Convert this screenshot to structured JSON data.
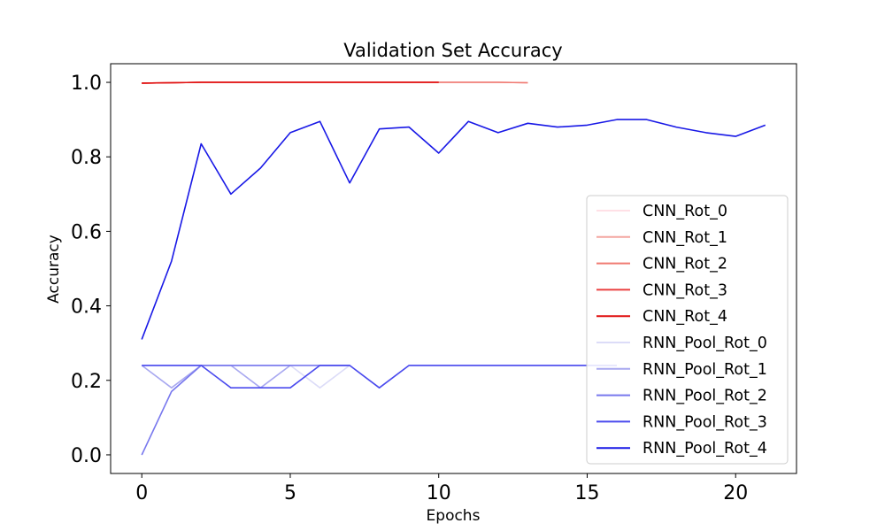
{
  "chart_data": {
    "type": "line",
    "title": "Validation Set Accuracy",
    "xlabel": "Epochs",
    "ylabel": "Accuracy",
    "xlim": [
      -1.05,
      22.05
    ],
    "ylim": [
      -0.05,
      1.05
    ],
    "xticks": [
      0,
      5,
      10,
      15,
      20
    ],
    "yticks": [
      0.0,
      0.2,
      0.4,
      0.6,
      0.8,
      1.0
    ],
    "xtick_labels": [
      "0",
      "5",
      "10",
      "15",
      "20"
    ],
    "ytick_labels": [
      "0.0",
      "0.2",
      "0.4",
      "0.6",
      "0.8",
      "1.0"
    ],
    "grid": false,
    "legend_position": "lower-right",
    "series": [
      {
        "name": "CNN_Rot_0",
        "color": "#ffe0e6",
        "x": [
          0,
          1,
          2,
          3,
          4,
          5,
          6,
          7,
          8,
          9,
          10,
          11,
          12,
          13
        ],
        "values": [
          0.998,
          0.999,
          1.0,
          1.0,
          1.0,
          1.0,
          1.0,
          1.0,
          1.0,
          1.0,
          1.0,
          1.0,
          1.0,
          0.999
        ]
      },
      {
        "name": "CNN_Rot_1",
        "color": "#f4a6a0",
        "x": [
          0,
          1,
          2,
          3,
          4,
          5,
          6,
          7,
          8,
          9,
          10,
          11,
          12,
          13
        ],
        "values": [
          0.998,
          0.999,
          1.0,
          1.0,
          1.0,
          1.0,
          1.0,
          1.0,
          1.0,
          1.0,
          1.0,
          1.0,
          1.0,
          0.999
        ]
      },
      {
        "name": "CNN_Rot_2",
        "color": "#f07a72",
        "x": [
          0,
          1,
          2,
          3,
          4,
          5,
          6,
          7,
          8,
          9,
          10,
          11,
          12,
          13
        ],
        "values": [
          0.998,
          0.999,
          1.0,
          1.0,
          1.0,
          1.0,
          1.0,
          1.0,
          1.0,
          1.0,
          1.0,
          1.0,
          1.0,
          0.999
        ]
      },
      {
        "name": "CNN_Rot_3",
        "color": "#ea4040",
        "x": [
          0,
          1,
          2,
          3,
          4,
          5,
          6,
          7,
          8,
          9,
          10
        ],
        "values": [
          0.998,
          0.999,
          1.0,
          1.0,
          1.0,
          1.0,
          1.0,
          1.0,
          1.0,
          1.0,
          1.0
        ]
      },
      {
        "name": "CNN_Rot_4",
        "color": "#e01010",
        "x": [
          0,
          1,
          2,
          3,
          4,
          5,
          6,
          7,
          8,
          9,
          10
        ],
        "values": [
          0.998,
          0.999,
          1.0,
          1.0,
          1.0,
          1.0,
          1.0,
          1.0,
          1.0,
          1.0,
          1.0
        ]
      },
      {
        "name": "RNN_Pool_Rot_0",
        "color": "#dcdcf8",
        "x": [
          0,
          1,
          2,
          3,
          4,
          5,
          6,
          7,
          8,
          9,
          10,
          11,
          12,
          13,
          14,
          15,
          16
        ],
        "values": [
          0.24,
          0.24,
          0.24,
          0.24,
          0.24,
          0.24,
          0.18,
          0.24,
          0.18,
          0.24,
          0.24,
          0.24,
          0.24,
          0.24,
          0.24,
          0.24,
          0.24
        ]
      },
      {
        "name": "RNN_Pool_Rot_1",
        "color": "#a8a8f0",
        "x": [
          0,
          1,
          2,
          3,
          4,
          5
        ],
        "values": [
          0.24,
          0.18,
          0.24,
          0.24,
          0.18,
          0.24
        ]
      },
      {
        "name": "RNN_Pool_Rot_2",
        "color": "#7878ee",
        "x": [
          0,
          1,
          2,
          3,
          4,
          5,
          6,
          7
        ],
        "values": [
          0.0,
          0.17,
          0.24,
          0.24,
          0.24,
          0.24,
          0.24,
          0.24
        ]
      },
      {
        "name": "RNN_Pool_Rot_3",
        "color": "#4a4aee",
        "x": [
          0,
          1,
          2,
          3,
          4,
          5,
          6,
          7,
          8,
          9,
          10,
          11,
          12,
          13,
          14,
          15,
          16
        ],
        "values": [
          0.24,
          0.24,
          0.24,
          0.18,
          0.18,
          0.18,
          0.24,
          0.24,
          0.18,
          0.24,
          0.24,
          0.24,
          0.24,
          0.24,
          0.24,
          0.24,
          0.24
        ]
      },
      {
        "name": "RNN_Pool_Rot_4",
        "color": "#1818e6",
        "x": [
          0,
          1,
          2,
          3,
          4,
          5,
          6,
          7,
          8,
          9,
          10,
          11,
          12,
          13,
          14,
          15,
          16,
          17,
          18,
          19,
          20,
          21
        ],
        "values": [
          0.31,
          0.52,
          0.835,
          0.7,
          0.77,
          0.865,
          0.895,
          0.73,
          0.875,
          0.88,
          0.81,
          0.895,
          0.865,
          0.89,
          0.88,
          0.885,
          0.9,
          0.9,
          0.88,
          0.865,
          0.855,
          0.885
        ]
      }
    ]
  }
}
